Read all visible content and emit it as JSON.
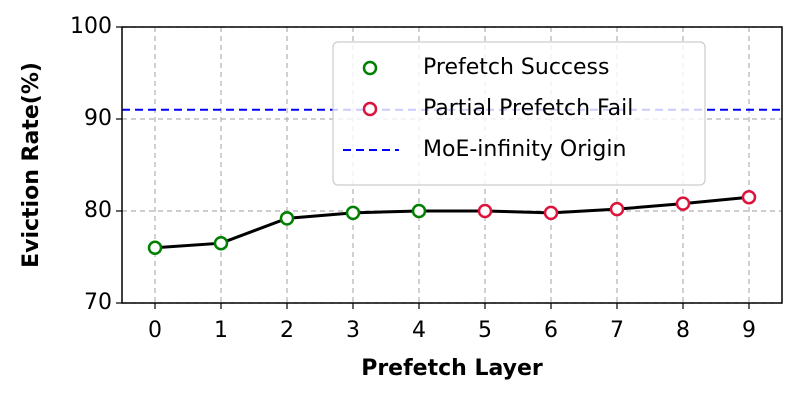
{
  "chart_data": {
    "type": "line",
    "x_label": "Prefetch Layer",
    "y_label": "Eviction Rate(%)",
    "x": [
      0,
      1,
      2,
      3,
      4,
      5,
      6,
      7,
      8,
      9
    ],
    "line_color": "#000000",
    "series": [
      {
        "name": "Prefetch Success",
        "color": "#008000",
        "values": [
          76.0,
          76.5,
          79.2,
          79.8,
          80.0,
          null,
          null,
          null,
          null,
          null
        ]
      },
      {
        "name": "Partial Prefetch Fail",
        "color": "#dc143c",
        "values": [
          null,
          null,
          null,
          null,
          null,
          80.0,
          79.8,
          80.2,
          80.8,
          81.5
        ]
      }
    ],
    "reference_lines": [
      {
        "name": "MoE-infinity Origin",
        "value": 91,
        "color": "#0000ff"
      }
    ],
    "xlim": [
      -0.5,
      9.5
    ],
    "xticks": [
      0,
      1,
      2,
      3,
      4,
      5,
      6,
      7,
      8,
      9
    ],
    "ylim": [
      70,
      100
    ],
    "yticks": [
      70,
      80,
      90,
      100
    ],
    "grid": true,
    "legend": "upper right"
  }
}
